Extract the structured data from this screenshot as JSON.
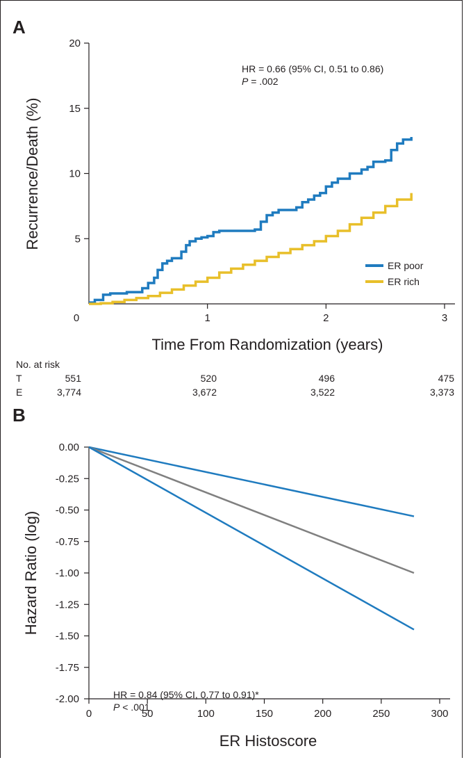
{
  "panel_a": {
    "label": "A",
    "annotation_line1": "HR = 0.66 (95% CI, 0.51 to 0.86)",
    "annotation_p_symbol": "P",
    "annotation_p_value": " = .002",
    "ylabel": "Recurrence/Death (%)",
    "xlabel": "Time From Randomization (years)",
    "legend": [
      "ER poor",
      "ER rich"
    ],
    "risk_table": {
      "title": "No. at risk",
      "rows": [
        {
          "label": "T",
          "values": [
            "551",
            "520",
            "496",
            "475"
          ]
        },
        {
          "label": "E",
          "values": [
            "3,774",
            "3,672",
            "3,522",
            "3,373"
          ]
        }
      ]
    }
  },
  "panel_b": {
    "label": "B",
    "annotation_line1": "HR = 0.84 (95% CI, 0.77 to 0.91)*",
    "annotation_p_symbol": "P",
    "annotation_p_value": " < .001",
    "ylabel": "Hazard Ratio (log)",
    "xlabel": "ER Histoscore"
  },
  "colors": {
    "blue": "#1f7bbf",
    "gold": "#e8bf2a",
    "gray": "#808080",
    "ink": "#231f20"
  },
  "chart_data": [
    {
      "type": "line",
      "step": true,
      "xlabel": "Time From Randomization (years)",
      "ylabel": "Recurrence/Death (%)",
      "xlim": [
        0,
        3
      ],
      "ylim": [
        0,
        20
      ],
      "xticks": [
        "0",
        "1",
        "2",
        "3"
      ],
      "yticks": [
        "5",
        "10",
        "15",
        "20"
      ],
      "legend_position": "bottom-right",
      "series": [
        {
          "name": "ER poor",
          "color": "#1f7bbf",
          "x": [
            0.0,
            0.05,
            0.12,
            0.18,
            0.32,
            0.45,
            0.5,
            0.55,
            0.58,
            0.62,
            0.66,
            0.7,
            0.78,
            0.82,
            0.85,
            0.9,
            0.95,
            1.0,
            1.05,
            1.1,
            1.2,
            1.3,
            1.4,
            1.45,
            1.5,
            1.55,
            1.6,
            1.7,
            1.75,
            1.8,
            1.85,
            1.9,
            1.95,
            2.0,
            2.05,
            2.1,
            2.2,
            2.3,
            2.35,
            2.4,
            2.5,
            2.55,
            2.6,
            2.65,
            2.72
          ],
          "y": [
            0.1,
            0.3,
            0.7,
            0.8,
            0.9,
            1.2,
            1.6,
            2.0,
            2.6,
            3.1,
            3.3,
            3.5,
            4.0,
            4.5,
            4.8,
            5.0,
            5.1,
            5.2,
            5.5,
            5.6,
            5.6,
            5.6,
            5.7,
            6.3,
            6.8,
            7.0,
            7.2,
            7.2,
            7.4,
            7.8,
            8.0,
            8.3,
            8.5,
            9.0,
            9.3,
            9.6,
            10.0,
            10.3,
            10.5,
            10.9,
            11.0,
            11.8,
            12.3,
            12.6,
            12.8
          ]
        },
        {
          "name": "ER rich",
          "color": "#e8bf2a",
          "x": [
            0.0,
            0.1,
            0.2,
            0.3,
            0.4,
            0.5,
            0.6,
            0.7,
            0.8,
            0.9,
            1.0,
            1.1,
            1.2,
            1.3,
            1.4,
            1.5,
            1.6,
            1.7,
            1.8,
            1.9,
            2.0,
            2.1,
            2.2,
            2.3,
            2.4,
            2.5,
            2.6,
            2.72
          ],
          "y": [
            0.0,
            0.05,
            0.15,
            0.3,
            0.45,
            0.6,
            0.85,
            1.1,
            1.4,
            1.7,
            2.0,
            2.4,
            2.7,
            3.0,
            3.3,
            3.6,
            3.9,
            4.2,
            4.5,
            4.8,
            5.2,
            5.6,
            6.1,
            6.6,
            7.0,
            7.5,
            8.0,
            8.5
          ]
        }
      ]
    },
    {
      "type": "line",
      "xlabel": "ER Histoscore",
      "ylabel": "Hazard Ratio (log)",
      "xlim": [
        0,
        300
      ],
      "ylim": [
        -2.0,
        0.0
      ],
      "xticks": [
        "0",
        "50",
        "100",
        "150",
        "200",
        "250",
        "300"
      ],
      "yticks": [
        "0.00",
        "-0.25",
        "-0.50",
        "-0.75",
        "-1.00",
        "-1.25",
        "-1.50",
        "-1.75",
        "-2.00"
      ],
      "series": [
        {
          "color": "#1f7bbf",
          "x": [
            0,
            278
          ],
          "y": [
            0.0,
            -0.55
          ]
        },
        {
          "color": "#808080",
          "x": [
            0,
            278
          ],
          "y": [
            0.0,
            -1.0
          ]
        },
        {
          "color": "#1f7bbf",
          "x": [
            0,
            278
          ],
          "y": [
            0.0,
            -1.45
          ]
        }
      ]
    }
  ]
}
